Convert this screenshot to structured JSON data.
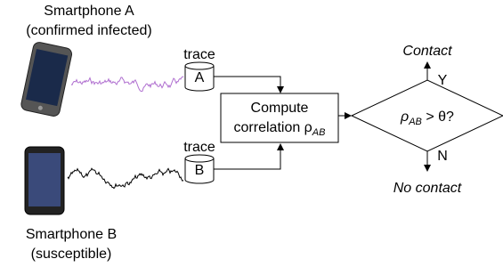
{
  "phone_a": {
    "name": "Smartphone A",
    "status": "(confirmed infected)"
  },
  "phone_b": {
    "name": "Smartphone B",
    "status": "(susceptible)"
  },
  "traces": [
    {
      "label": "trace",
      "id": "A"
    },
    {
      "label": "trace",
      "id": "B"
    }
  ],
  "compute": {
    "line1": "Compute",
    "line2": "correlation ρ",
    "line2_sub": "AB"
  },
  "decision": {
    "symbol": "ρ",
    "sub": "AB",
    "rest": " > θ?",
    "yes_label": "Y",
    "no_label": "N",
    "yes_outcome": "Contact",
    "no_outcome": "No contact"
  }
}
